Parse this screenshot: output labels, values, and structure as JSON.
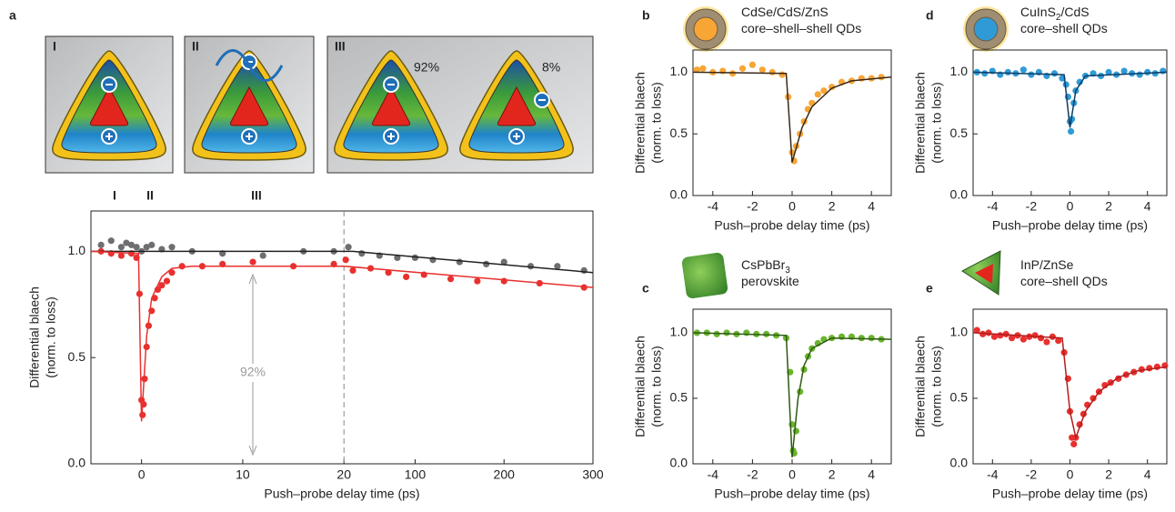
{
  "chart_data": [
    {
      "type": "scatter",
      "panel": "a",
      "schematic": {
        "labels": [
          "I",
          "II",
          "III"
        ],
        "percents": [
          "92%",
          "8%"
        ]
      },
      "phase_labels": [
        "I",
        "II",
        "III"
      ],
      "annotation": "92%",
      "ylabel": [
        "Differential blaech",
        "(norm. to loss)"
      ],
      "xlabel": "Push–probe delay time (ps)",
      "xlim": [
        -5,
        300
      ],
      "x_break": 20,
      "xticks": [
        0,
        10,
        20,
        100,
        200,
        300
      ],
      "ylim": [
        0,
        1.19
      ],
      "yticks": [
        {
          "value": 0,
          "label": "0.0"
        },
        {
          "value": 0.5,
          "label": "0.5"
        },
        {
          "value": 1,
          "label": "1.0"
        }
      ],
      "series": [
        {
          "kind": "points",
          "color": "#6d6e71",
          "x": [
            -4,
            -3,
            -2,
            -1.5,
            -1,
            -0.5,
            0,
            0.5,
            1,
            2,
            3,
            5,
            8,
            12,
            16,
            19,
            25,
            40,
            60,
            80,
            100,
            120,
            150,
            180,
            200,
            230,
            260,
            290
          ],
          "values": [
            1.03,
            1.05,
            1.02,
            1.04,
            1.03,
            1.02,
            1.0,
            1.02,
            1.03,
            1.01,
            1.02,
            1.0,
            0.99,
            0.98,
            1.0,
            1.0,
            1.02,
            0.99,
            0.98,
            0.97,
            0.97,
            0.96,
            0.95,
            0.94,
            0.95,
            0.93,
            0.93,
            0.91
          ]
        },
        {
          "kind": "points",
          "color": "#e8312f",
          "x": [
            -4,
            -3,
            -2,
            -1,
            -0.5,
            -0.2,
            0,
            0.1,
            0.2,
            0.3,
            0.5,
            0.7,
            1,
            1.3,
            1.6,
            2,
            2.5,
            3,
            4,
            6,
            8,
            11,
            15,
            19,
            22,
            30,
            50,
            70,
            90,
            110,
            140,
            170,
            200,
            240,
            290
          ],
          "values": [
            1.0,
            0.99,
            0.98,
            0.99,
            0.97,
            0.8,
            0.3,
            0.23,
            0.28,
            0.4,
            0.55,
            0.65,
            0.72,
            0.78,
            0.82,
            0.84,
            0.86,
            0.9,
            0.93,
            0.93,
            0.94,
            0.95,
            0.93,
            0.94,
            0.96,
            0.91,
            0.92,
            0.9,
            0.88,
            0.89,
            0.87,
            0.86,
            0.86,
            0.85,
            0.83
          ]
        },
        {
          "kind": "fit",
          "color": "#222222",
          "x": [
            -5,
            30,
            300
          ],
          "values": [
            1.0,
            1.0,
            0.9
          ]
        },
        {
          "kind": "fit",
          "color": "#e8312f",
          "x": [
            -5,
            -0.3,
            0,
            0.5,
            1,
            2,
            3,
            5,
            20,
            300
          ],
          "values": [
            1.0,
            0.99,
            0.2,
            0.6,
            0.78,
            0.88,
            0.92,
            0.93,
            0.93,
            0.83
          ]
        }
      ]
    },
    {
      "type": "scatter",
      "panel": "b",
      "title": [
        [
          "CdSe/CdS/ZnS"
        ],
        [
          "core–shell–shell QDs"
        ]
      ],
      "ylabel": [
        "Differential blaech",
        "(norm. to loss)"
      ],
      "xlabel": "Push–probe delay time (ps)",
      "xlim": [
        -5,
        5
      ],
      "xticks": [
        -4,
        -2,
        0,
        2,
        4
      ],
      "ylim": [
        0,
        1.18
      ],
      "yticks": [
        {
          "value": 0,
          "label": "0.0"
        },
        {
          "value": 0.5,
          "label": "0.5"
        },
        {
          "value": 1,
          "label": "1.0"
        }
      ],
      "series": [
        {
          "kind": "points",
          "color": "#f7a535",
          "x": [
            -4.8,
            -4.5,
            -4,
            -3.5,
            -3,
            -2.5,
            -2,
            -1.5,
            -1,
            -0.5,
            -0.2,
            0,
            0.1,
            0.2,
            0.4,
            0.6,
            0.8,
            1,
            1.3,
            1.6,
            2,
            2.5,
            3,
            3.5,
            4,
            4.5
          ],
          "values": [
            1.02,
            1.03,
            1.0,
            1.01,
            0.99,
            1.03,
            1.06,
            1.02,
            1.0,
            0.98,
            0.8,
            0.35,
            0.28,
            0.4,
            0.5,
            0.6,
            0.7,
            0.75,
            0.82,
            0.85,
            0.88,
            0.92,
            0.93,
            0.95,
            0.95,
            0.96
          ]
        },
        {
          "kind": "fit",
          "color": "#3a2a1a",
          "x": [
            -5,
            -0.3,
            0,
            0.5,
            1,
            2,
            3,
            5
          ],
          "values": [
            1.0,
            0.99,
            0.27,
            0.55,
            0.72,
            0.87,
            0.93,
            0.96
          ]
        }
      ]
    },
    {
      "type": "scatter",
      "panel": "c",
      "title": [
        [
          "CsPbBr",
          {
            "text": "3",
            "sub": true
          }
        ],
        [
          "perovskite"
        ]
      ],
      "ylabel": [
        "Differential blaech",
        "(norm. to loss)"
      ],
      "xlabel": "Push–probe delay time (ps)",
      "xlim": [
        -5,
        5
      ],
      "xticks": [
        -4,
        -2,
        0,
        2,
        4
      ],
      "ylim": [
        0,
        1.18
      ],
      "yticks": [
        {
          "value": 0,
          "label": "0.0"
        },
        {
          "value": 0.5,
          "label": "0.5"
        },
        {
          "value": 1,
          "label": "1.0"
        }
      ],
      "series": [
        {
          "kind": "points",
          "color": "#6ab42d",
          "x": [
            -4.8,
            -4.3,
            -3.8,
            -3.3,
            -2.8,
            -2.3,
            -1.8,
            -1.3,
            -0.8,
            -0.3,
            -0.1,
            0,
            0.05,
            0.1,
            0.2,
            0.4,
            0.6,
            0.8,
            1,
            1.3,
            1.6,
            2,
            2.5,
            3,
            3.5,
            4,
            4.5
          ],
          "values": [
            1.0,
            1.0,
            0.99,
            1.0,
            0.99,
            1.0,
            0.99,
            0.99,
            0.98,
            0.96,
            0.7,
            0.3,
            0.1,
            0.08,
            0.25,
            0.55,
            0.72,
            0.82,
            0.88,
            0.92,
            0.95,
            0.96,
            0.97,
            0.97,
            0.96,
            0.96,
            0.95
          ]
        },
        {
          "kind": "fit",
          "color": "#2d5a12",
          "x": [
            -5,
            -0.3,
            0,
            0.3,
            0.6,
            1,
            2,
            5
          ],
          "values": [
            1.0,
            0.98,
            0.05,
            0.5,
            0.75,
            0.88,
            0.96,
            0.95
          ]
        }
      ]
    },
    {
      "type": "scatter",
      "panel": "d",
      "title": [
        [
          "CuInS",
          {
            "text": "2",
            "sub": true
          },
          "/CdS"
        ],
        [
          "core–shell QDs"
        ]
      ],
      "ylabel": [
        "Differential blaech",
        "(norm. to loss)"
      ],
      "xlabel": "Push–probe delay time (ps)",
      "xlim": [
        -5,
        5
      ],
      "xticks": [
        -4,
        -2,
        0,
        2,
        4
      ],
      "ylim": [
        0,
        1.18
      ],
      "yticks": [
        {
          "value": 0,
          "label": "0.0"
        },
        {
          "value": 0.5,
          "label": "0.5"
        },
        {
          "value": 1,
          "label": "1.0"
        }
      ],
      "series": [
        {
          "kind": "points",
          "color": "#2f9bd6",
          "x": [
            -4.8,
            -4.4,
            -4,
            -3.6,
            -3.2,
            -2.8,
            -2.4,
            -2,
            -1.6,
            -1.2,
            -0.8,
            -0.4,
            -0.2,
            -0.1,
            0,
            0.05,
            0.1,
            0.2,
            0.3,
            0.5,
            0.8,
            1.2,
            1.6,
            2,
            2.4,
            2.8,
            3.2,
            3.6,
            4,
            4.4,
            4.8
          ],
          "values": [
            1.0,
            0.99,
            1.01,
            0.98,
            1.0,
            0.99,
            1.02,
            0.98,
            1.0,
            0.97,
            0.99,
            0.95,
            0.9,
            0.8,
            0.6,
            0.52,
            0.62,
            0.75,
            0.85,
            0.92,
            0.97,
            0.99,
            0.97,
            1.0,
            0.98,
            1.01,
            0.99,
            0.98,
            1.0,
            0.99,
            1.01
          ]
        },
        {
          "kind": "fit",
          "color": "#0d3d66",
          "x": [
            -5,
            -0.3,
            0,
            0.3,
            0.8,
            5
          ],
          "values": [
            1.0,
            0.98,
            0.55,
            0.85,
            0.97,
            1.0
          ]
        }
      ]
    },
    {
      "type": "scatter",
      "panel": "e",
      "title": [
        [
          "InP/ZnSe"
        ],
        [
          "core–shell QDs"
        ]
      ],
      "ylabel": [
        "Differential blaech",
        "(norm. to loss)"
      ],
      "xlabel": "Push–probe delay time (ps)",
      "xlim": [
        -5,
        5
      ],
      "xticks": [
        -4,
        -2,
        0,
        2,
        4
      ],
      "ylim": [
        0,
        1.18
      ],
      "yticks": [
        {
          "value": 0,
          "label": "0.0"
        },
        {
          "value": 0.5,
          "label": "0.5"
        },
        {
          "value": 1,
          "label": "1.0"
        }
      ],
      "series": [
        {
          "kind": "points",
          "color": "#e8312f",
          "x": [
            -4.8,
            -4.5,
            -4.2,
            -3.9,
            -3.6,
            -3.3,
            -3,
            -2.7,
            -2.4,
            -2.1,
            -1.8,
            -1.5,
            -1.2,
            -0.9,
            -0.6,
            -0.3,
            -0.1,
            0,
            0.1,
            0.2,
            0.3,
            0.5,
            0.7,
            0.9,
            1.2,
            1.5,
            1.8,
            2.1,
            2.5,
            2.9,
            3.3,
            3.7,
            4.1,
            4.5,
            4.9
          ],
          "values": [
            1.02,
            0.99,
            1.0,
            0.97,
            0.98,
            0.99,
            0.96,
            0.98,
            0.95,
            0.97,
            0.98,
            0.96,
            0.93,
            0.97,
            0.94,
            0.85,
            0.65,
            0.4,
            0.2,
            0.15,
            0.2,
            0.3,
            0.38,
            0.45,
            0.5,
            0.55,
            0.6,
            0.62,
            0.65,
            0.68,
            0.7,
            0.72,
            0.73,
            0.74,
            0.75
          ]
        },
        {
          "kind": "fit",
          "color": "#b01e1c",
          "x": [
            -5,
            -0.4,
            0,
            0.3,
            0.8,
            1.5,
            2.5,
            3.5,
            5
          ],
          "values": [
            1.0,
            0.96,
            0.4,
            0.2,
            0.4,
            0.55,
            0.66,
            0.71,
            0.74
          ]
        }
      ]
    }
  ]
}
